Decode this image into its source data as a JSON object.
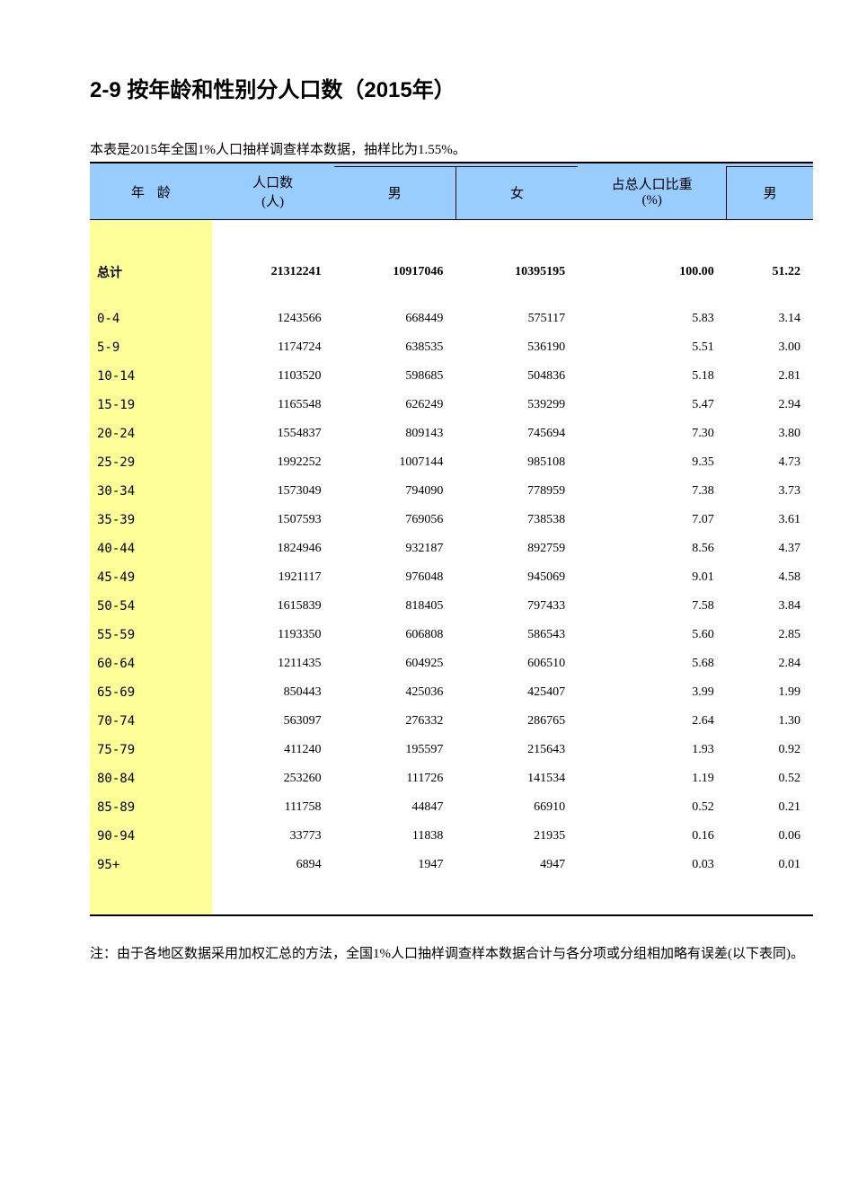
{
  "title": "2-9   按年龄和性别分人口数（2015年）",
  "caption": "本表是2015年全国1%人口抽样调查样本数据，抽样比为1.55%。",
  "footnote": "注：由于各地区数据采用加权汇总的方法，全国1%人口抽样调查样本数据合计与各分项或分组相加略有误差(以下表同)。",
  "header": {
    "age": "年龄",
    "pop": "人口数",
    "pop_unit": "(人)",
    "male": "男",
    "female": "女",
    "pct": "占总人口比重",
    "pct_unit": "(%)",
    "pct_male": "男"
  },
  "total_label": "总计",
  "total": {
    "pop": "21312241",
    "male": "10917046",
    "female": "10395195",
    "pct": "100.00",
    "pct_male": "51.22"
  },
  "rows": [
    {
      "age": "0-4",
      "pop": "1243566",
      "male": "668449",
      "female": "575117",
      "pct": "5.83",
      "pct_male": "3.14"
    },
    {
      "age": "5-9",
      "pop": "1174724",
      "male": "638535",
      "female": "536190",
      "pct": "5.51",
      "pct_male": "3.00"
    },
    {
      "age": "10-14",
      "pop": "1103520",
      "male": "598685",
      "female": "504836",
      "pct": "5.18",
      "pct_male": "2.81"
    },
    {
      "age": "15-19",
      "pop": "1165548",
      "male": "626249",
      "female": "539299",
      "pct": "5.47",
      "pct_male": "2.94"
    },
    {
      "age": "20-24",
      "pop": "1554837",
      "male": "809143",
      "female": "745694",
      "pct": "7.30",
      "pct_male": "3.80"
    },
    {
      "age": "25-29",
      "pop": "1992252",
      "male": "1007144",
      "female": "985108",
      "pct": "9.35",
      "pct_male": "4.73"
    },
    {
      "age": "30-34",
      "pop": "1573049",
      "male": "794090",
      "female": "778959",
      "pct": "7.38",
      "pct_male": "3.73"
    },
    {
      "age": "35-39",
      "pop": "1507593",
      "male": "769056",
      "female": "738538",
      "pct": "7.07",
      "pct_male": "3.61"
    },
    {
      "age": "40-44",
      "pop": "1824946",
      "male": "932187",
      "female": "892759",
      "pct": "8.56",
      "pct_male": "4.37"
    },
    {
      "age": "45-49",
      "pop": "1921117",
      "male": "976048",
      "female": "945069",
      "pct": "9.01",
      "pct_male": "4.58"
    },
    {
      "age": "50-54",
      "pop": "1615839",
      "male": "818405",
      "female": "797433",
      "pct": "7.58",
      "pct_male": "3.84"
    },
    {
      "age": "55-59",
      "pop": "1193350",
      "male": "606808",
      "female": "586543",
      "pct": "5.60",
      "pct_male": "2.85"
    },
    {
      "age": "60-64",
      "pop": "1211435",
      "male": "604925",
      "female": "606510",
      "pct": "5.68",
      "pct_male": "2.84"
    },
    {
      "age": "65-69",
      "pop": "850443",
      "male": "425036",
      "female": "425407",
      "pct": "3.99",
      "pct_male": "1.99"
    },
    {
      "age": "70-74",
      "pop": "563097",
      "male": "276332",
      "female": "286765",
      "pct": "2.64",
      "pct_male": "1.30"
    },
    {
      "age": "75-79",
      "pop": "411240",
      "male": "195597",
      "female": "215643",
      "pct": "1.93",
      "pct_male": "0.92"
    },
    {
      "age": "80-84",
      "pop": "253260",
      "male": "111726",
      "female": "141534",
      "pct": "1.19",
      "pct_male": "0.52"
    },
    {
      "age": "85-89",
      "pop": "111758",
      "male": "44847",
      "female": "66910",
      "pct": "0.52",
      "pct_male": "0.21"
    },
    {
      "age": "90-94",
      "pop": "33773",
      "male": "11838",
      "female": "21935",
      "pct": "0.16",
      "pct_male": "0.06"
    },
    {
      "age": "95+",
      "pop": "6894",
      "male": "1947",
      "female": "4947",
      "pct": "0.03",
      "pct_male": "0.01"
    }
  ],
  "styling": {
    "type": "table",
    "header_bg": "#99ccff",
    "firstcol_bg": "#ffff99",
    "border_color": "#000000",
    "page_bg": "#ffffff",
    "title_fontsize": 24,
    "body_fontsize": 14,
    "caption_fontsize": 15,
    "font_family_title": "SimHei",
    "font_family_body": "SimSun",
    "columns": [
      "age",
      "pop",
      "male",
      "female",
      "pct",
      "pct_male"
    ],
    "column_align": [
      "left",
      "right",
      "right",
      "right",
      "right",
      "right"
    ]
  }
}
